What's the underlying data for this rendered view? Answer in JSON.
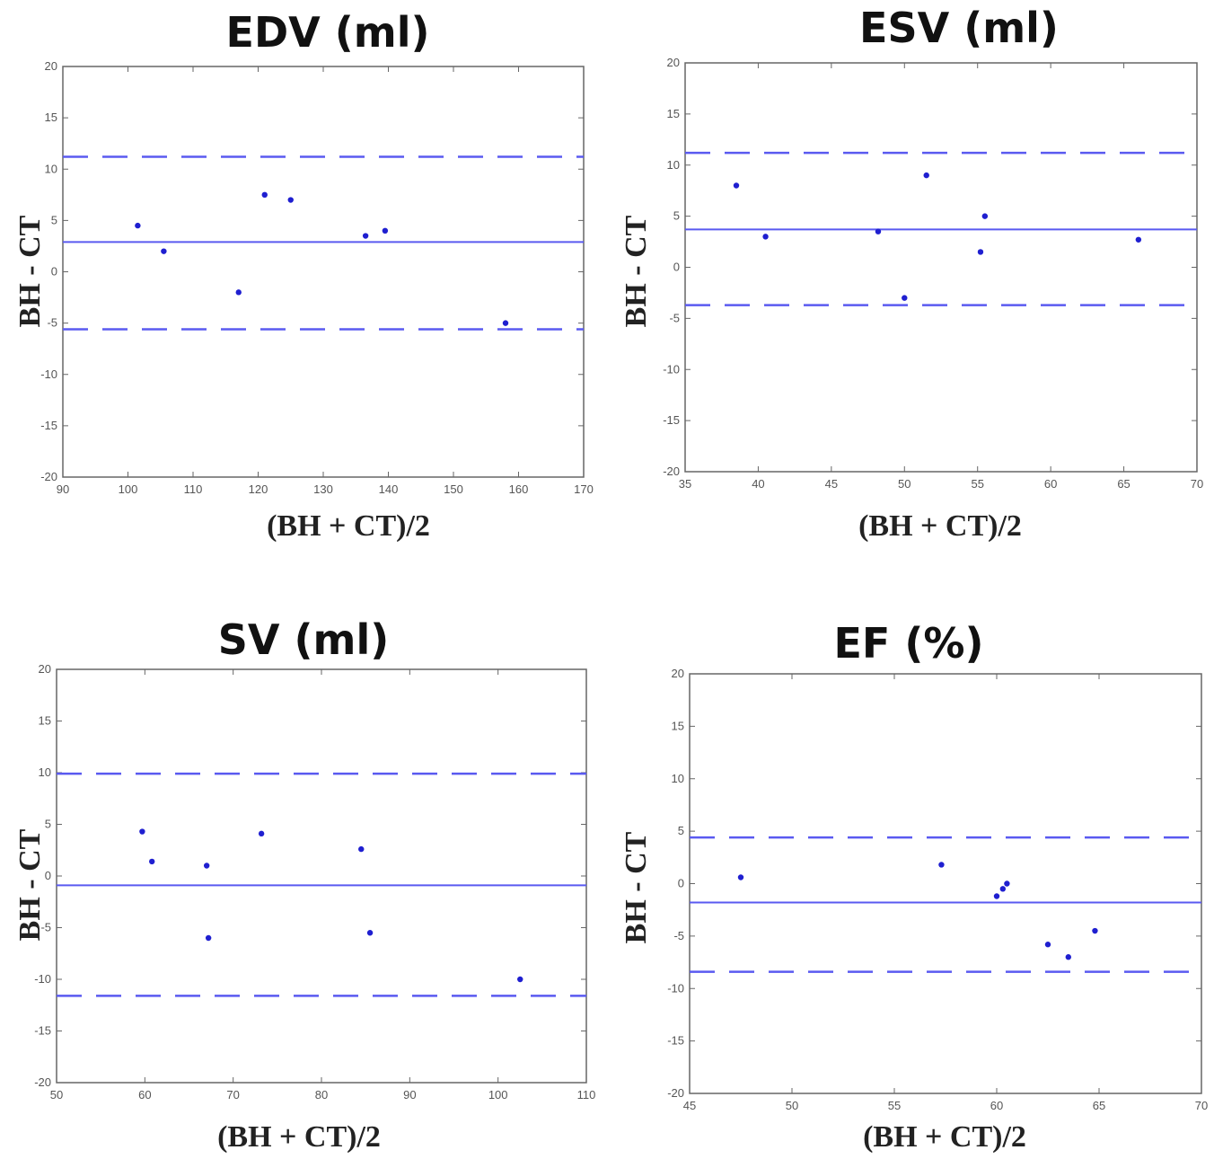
{
  "chart_data": [
    {
      "type": "scatter",
      "title": "EDV (ml)",
      "xlabel": "(BH + CT)/2",
      "ylabel": "BH - CT",
      "xlim": [
        90,
        170
      ],
      "ylim": [
        -20,
        20
      ],
      "xticks": [
        90,
        100,
        110,
        120,
        130,
        140,
        150,
        160,
        170
      ],
      "yticks": [
        20,
        15,
        10,
        5,
        0,
        -5,
        -10,
        -15,
        -20
      ],
      "mean": 2.9,
      "upper_loa": 11.2,
      "lower_loa": -5.6,
      "x": [
        101.5,
        105.5,
        117,
        121,
        125,
        136.5,
        139.5,
        158
      ],
      "y": [
        4.5,
        2,
        -2,
        7.5,
        7,
        3.5,
        4,
        -5
      ]
    },
    {
      "type": "scatter",
      "title": "ESV (ml)",
      "xlabel": "(BH + CT)/2",
      "ylabel": "BH - CT",
      "xlim": [
        35,
        70
      ],
      "ylim": [
        -20,
        20
      ],
      "xticks": [
        35,
        40,
        45,
        50,
        55,
        60,
        65,
        70
      ],
      "yticks": [
        20,
        15,
        10,
        5,
        0,
        -5,
        -10,
        -15,
        -20
      ],
      "mean": 3.7,
      "upper_loa": 11.2,
      "lower_loa": -3.7,
      "x": [
        38.5,
        40.5,
        48.2,
        50,
        51.5,
        55.2,
        55.5,
        66
      ],
      "y": [
        8,
        3,
        3.5,
        -3,
        9,
        1.5,
        5,
        2.7
      ]
    },
    {
      "type": "scatter",
      "title": "SV (ml)",
      "xlabel": "(BH + CT)/2",
      "ylabel": "BH - CT",
      "xlim": [
        50,
        110
      ],
      "ylim": [
        -20,
        20
      ],
      "xticks": [
        50,
        60,
        70,
        80,
        90,
        100,
        110
      ],
      "yticks": [
        20,
        15,
        10,
        5,
        0,
        -5,
        -10,
        -15,
        -20
      ],
      "mean": -0.9,
      "upper_loa": 9.9,
      "lower_loa": -11.6,
      "x": [
        59.7,
        60.8,
        67,
        67.2,
        73.2,
        84.5,
        85.5,
        102.5
      ],
      "y": [
        4.3,
        1.4,
        1,
        -6,
        4.1,
        2.6,
        -5.5,
        -10
      ]
    },
    {
      "type": "scatter",
      "title": "EF (%)",
      "xlabel": "(BH + CT)/2",
      "ylabel": "BH - CT",
      "xlim": [
        45,
        70
      ],
      "ylim": [
        -20,
        20
      ],
      "xticks": [
        45,
        50,
        55,
        60,
        65,
        70
      ],
      "yticks": [
        20,
        15,
        10,
        5,
        0,
        -5,
        -10,
        -15,
        -20
      ],
      "mean": -1.8,
      "upper_loa": 4.4,
      "lower_loa": -8.4,
      "x": [
        47.5,
        57.3,
        60,
        60.3,
        60.5,
        62.5,
        63.5,
        64.8
      ],
      "y": [
        0.6,
        1.8,
        -1.2,
        -0.5,
        0,
        -5.8,
        -7,
        -4.5
      ]
    }
  ]
}
